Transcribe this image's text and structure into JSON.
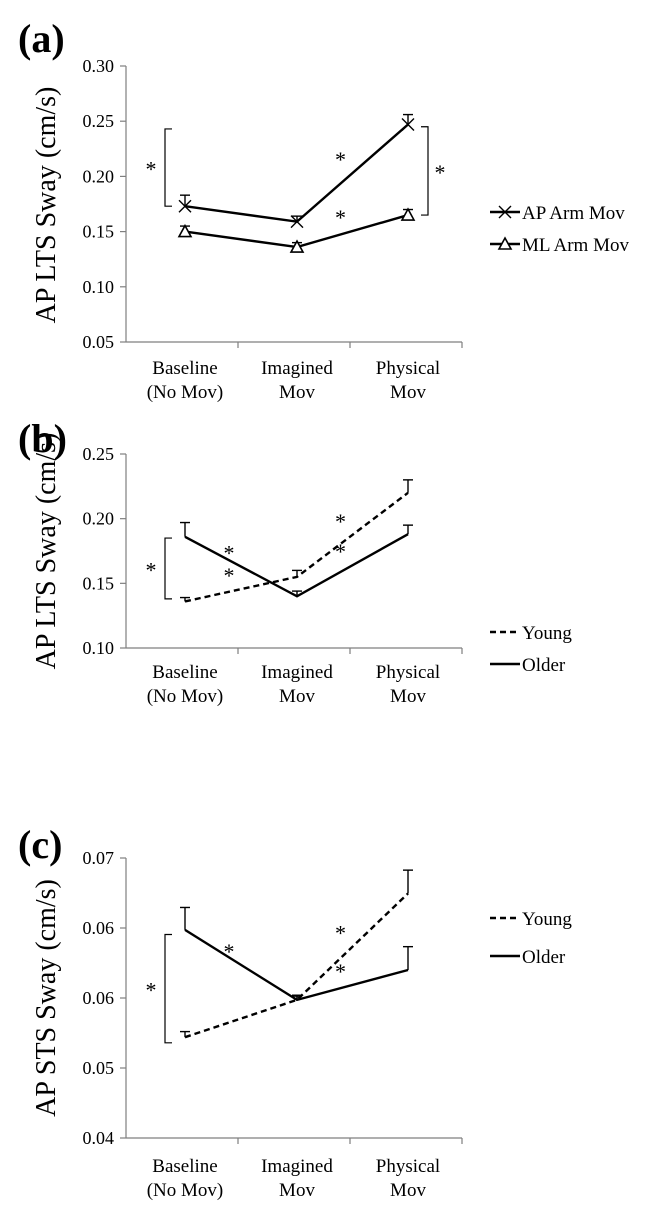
{
  "chart_data": [
    {
      "type": "line",
      "panel_label": "(a)",
      "ylabel": "AP LTS Sway (cm/s)",
      "xlabel": "",
      "categories": [
        [
          "Baseline",
          "(No Mov)"
        ],
        [
          "Imagined",
          "Mov"
        ],
        [
          "Physical",
          "Mov"
        ]
      ],
      "ylim": [
        0.05,
        0.3
      ],
      "yticks": [
        "0.05",
        "0.10",
        "0.15",
        "0.20",
        "0.25",
        "0.30"
      ],
      "legend_position": "right",
      "grid": false,
      "series": [
        {
          "name": "AP Arm Mov",
          "marker": "x",
          "dash": "solid",
          "values": [
            0.173,
            0.159,
            0.247
          ],
          "errors": [
            0.01,
            0.005,
            0.009
          ]
        },
        {
          "name": "ML Arm Mov",
          "marker": "triangle",
          "dash": "solid",
          "values": [
            0.15,
            0.136,
            0.165
          ],
          "errors": [
            0.005,
            0.004,
            0.005
          ]
        }
      ],
      "annotations": [
        {
          "text": "*",
          "kind": "bracket",
          "at_category": 0,
          "y_range": [
            0.173,
            0.243
          ],
          "side": "left"
        },
        {
          "text": "*",
          "kind": "bracket",
          "at_category": 2,
          "y_range": [
            0.165,
            0.245
          ],
          "side": "right"
        },
        {
          "text": "*",
          "kind": "segment",
          "series": 0,
          "between": [
            1,
            2
          ]
        },
        {
          "text": "*",
          "kind": "segment",
          "series": 1,
          "between": [
            1,
            2
          ]
        }
      ]
    },
    {
      "type": "line",
      "panel_label": "(b)",
      "ylabel": "AP LTS Sway (cm/s)",
      "xlabel": "",
      "categories": [
        [
          "Baseline",
          "(No Mov)"
        ],
        [
          "Imagined",
          "Mov"
        ],
        [
          "Physical",
          "Mov"
        ]
      ],
      "ylim": [
        0.1,
        0.25
      ],
      "yticks": [
        "0.10",
        "0.15",
        "0.20",
        "0.25"
      ],
      "legend_position": "right",
      "grid": false,
      "series": [
        {
          "name": "Young",
          "marker": "none",
          "dash": "dashed",
          "values": [
            0.136,
            0.155,
            0.22
          ],
          "errors": [
            0.003,
            0.005,
            0.01
          ]
        },
        {
          "name": "Older",
          "marker": "none",
          "dash": "solid",
          "values": [
            0.186,
            0.14,
            0.188
          ],
          "errors": [
            0.011,
            0.004,
            0.007
          ]
        }
      ],
      "annotations": [
        {
          "text": "*",
          "kind": "bracket",
          "at_category": 0,
          "y_range": [
            0.138,
            0.185
          ],
          "side": "left"
        },
        {
          "text": "*",
          "kind": "segment",
          "series": 1,
          "between": [
            0,
            1
          ]
        },
        {
          "text": "*",
          "kind": "segment",
          "series": 0,
          "between": [
            0,
            1
          ]
        },
        {
          "text": "*",
          "kind": "segment",
          "series": 0,
          "between": [
            1,
            2
          ]
        },
        {
          "text": "*",
          "kind": "segment",
          "series": 1,
          "between": [
            1,
            2
          ]
        }
      ]
    },
    {
      "type": "line",
      "panel_label": "(c)",
      "ylabel": "AP STS Sway (cm/s)",
      "xlabel": "",
      "categories": [
        [
          "Baseline",
          "(No Mov)"
        ],
        [
          "Imagined",
          "Mov"
        ],
        [
          "Physical",
          "Mov"
        ]
      ],
      "ylim": [
        0.04,
        0.07
      ],
      "yticks": [
        "0.04",
        "0.05",
        "0.06",
        "0.06",
        "0.07"
      ],
      "legend_position": "right",
      "grid": false,
      "series": [
        {
          "name": "Young",
          "marker": "none",
          "dash": "dashed",
          "values": [
            0.0508,
            0.0548,
            0.0662
          ],
          "errors": [
            0.0006,
            0.0005,
            0.0025
          ]
        },
        {
          "name": "Older",
          "marker": "none",
          "dash": "solid",
          "values": [
            0.0623,
            0.0548,
            0.058
          ],
          "errors": [
            0.0024,
            0.0004,
            0.0025
          ]
        }
      ],
      "annotations": [
        {
          "text": "*",
          "kind": "bracket",
          "at_category": 0,
          "y_range": [
            0.0502,
            0.0618
          ],
          "side": "left"
        },
        {
          "text": "*",
          "kind": "segment",
          "series": 1,
          "between": [
            0,
            1
          ]
        },
        {
          "text": "*",
          "kind": "segment",
          "series": 0,
          "between": [
            1,
            2
          ]
        },
        {
          "text": "*",
          "kind": "segment",
          "series": 1,
          "between": [
            1,
            2
          ]
        }
      ]
    }
  ]
}
